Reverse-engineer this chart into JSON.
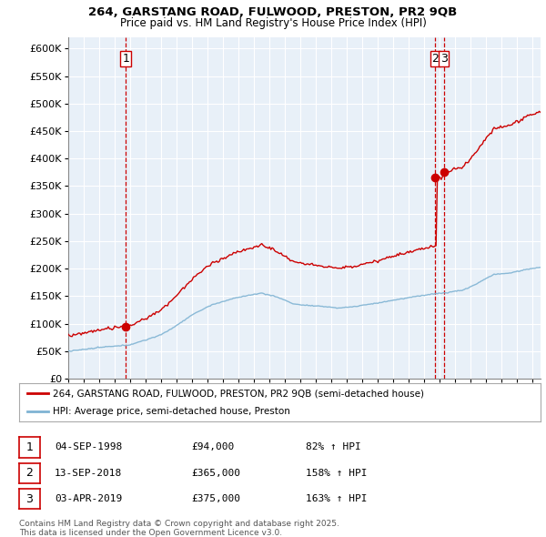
{
  "title_line1": "264, GARSTANG ROAD, FULWOOD, PRESTON, PR2 9QB",
  "title_line2": "Price paid vs. HM Land Registry's House Price Index (HPI)",
  "ytick_labels": [
    "£0",
    "£50K",
    "£100K",
    "£150K",
    "£200K",
    "£250K",
    "£300K",
    "£350K",
    "£400K",
    "£450K",
    "£500K",
    "£550K",
    "£600K"
  ],
  "yticks": [
    0,
    50000,
    100000,
    150000,
    200000,
    250000,
    300000,
    350000,
    400000,
    450000,
    500000,
    550000,
    600000
  ],
  "ylim": [
    0,
    620000
  ],
  "xlim_start": 1995,
  "xlim_end": 2025.5,
  "legend_line1": "264, GARSTANG ROAD, FULWOOD, PRESTON, PR2 9QB (semi-detached house)",
  "legend_line2": "HPI: Average price, semi-detached house, Preston",
  "transaction1_date": "04-SEP-1998",
  "transaction1_price": "£94,000",
  "transaction1_hpi": "82% ↑ HPI",
  "transaction2_date": "13-SEP-2018",
  "transaction2_price": "£365,000",
  "transaction2_hpi": "158% ↑ HPI",
  "transaction3_date": "03-APR-2019",
  "transaction3_price": "£375,000",
  "transaction3_hpi": "163% ↑ HPI",
  "footnote": "Contains HM Land Registry data © Crown copyright and database right 2025.\nThis data is licensed under the Open Government Licence v3.0.",
  "line_color_red": "#cc0000",
  "line_color_blue": "#7fb3d3",
  "vline_color": "#cc0000",
  "bg_color": "#ffffff",
  "plot_bg_color": "#e8f0f8",
  "grid_color": "#ffffff",
  "t1_x": 1998.71,
  "t1_y": 94000,
  "t2_x": 2018.71,
  "t2_y": 365000,
  "t3_x": 2019.25,
  "t3_y": 375000
}
